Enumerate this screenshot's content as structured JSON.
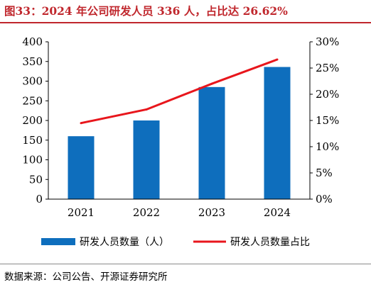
{
  "title": "图33：2024 年公司研发人员 336 人，占比达 26.62%",
  "source": "数据来源：公司公告、开源证券研究所",
  "chart_data": {
    "type": "bar",
    "categories": [
      "2021",
      "2022",
      "2023",
      "2024"
    ],
    "series": [
      {
        "name": "研发人员数量（人）",
        "type": "bar",
        "axis": "left",
        "values": [
          160,
          200,
          285,
          336
        ],
        "color": "#0e6ebd"
      },
      {
        "name": "研发人员数量占比",
        "type": "line",
        "axis": "right",
        "values": [
          14.5,
          17.1,
          22.0,
          26.62
        ],
        "color": "#e8161c"
      }
    ],
    "ylim_left": [
      0,
      400
    ],
    "yticks_left": [
      "0",
      "50",
      "100",
      "150",
      "200",
      "250",
      "300",
      "350",
      "400"
    ],
    "ylim_right": [
      0,
      30
    ],
    "yticks_right": [
      "0%",
      "5%",
      "10%",
      "15%",
      "20%",
      "25%",
      "30%"
    ],
    "grid": false,
    "legend": "bottom"
  }
}
